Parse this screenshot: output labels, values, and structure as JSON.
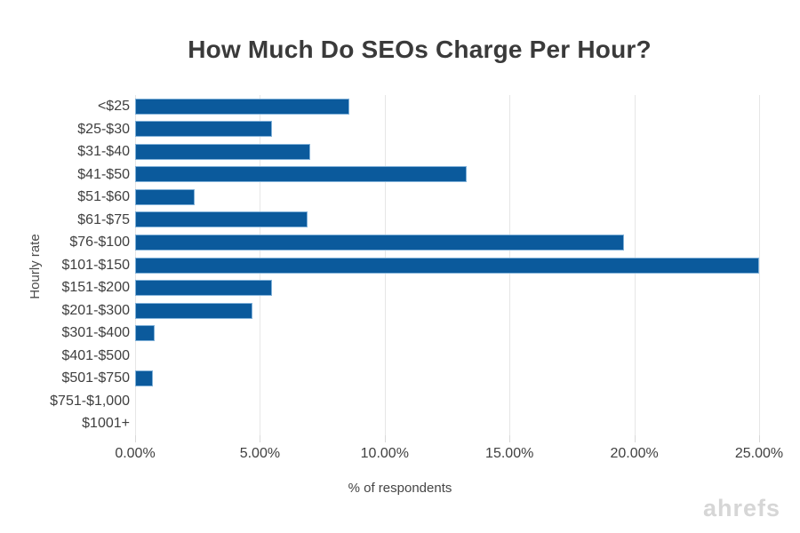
{
  "title": "How Much Do SEOs Charge Per Hour?",
  "watermark": "ahrefs",
  "colors": {
    "bar_fill": "#0b5a9c",
    "bar_border": "#7fb0d8",
    "gridline": "#e6e6e6",
    "tick": "#d8d8d8",
    "title_text": "#3a3a3a",
    "label_text": "#3f3f3f",
    "watermark_text": "#d6d6d6",
    "background": "#ffffff"
  },
  "chart_data": {
    "type": "bar",
    "orientation": "horizontal",
    "title": "How Much Do SEOs Charge Per Hour?",
    "xlabel": "% of respondents",
    "ylabel": "Hourly rate",
    "categories": [
      "<$25",
      "$25-$30",
      "$31-$40",
      "$41-$50",
      "$51-$60",
      "$61-$75",
      "$76-$100",
      "$101-$150",
      "$151-$200",
      "$201-$300",
      "$301-$400",
      "$401-$500",
      "$501-$750",
      "$751-$1,000",
      "$1001+"
    ],
    "values": [
      8.6,
      5.5,
      7.0,
      13.3,
      2.4,
      6.9,
      19.6,
      25.0,
      5.5,
      4.7,
      0.8,
      0,
      0.7,
      0,
      0
    ],
    "xlim": [
      0,
      25
    ],
    "xtick_values": [
      0,
      5,
      10,
      15,
      20,
      25
    ],
    "xtick_labels": [
      "0.00%",
      "5.00%",
      "10.00%",
      "15.00%",
      "20.00%",
      "25.00%"
    ],
    "grid": "vertical-only",
    "legend": "none"
  }
}
